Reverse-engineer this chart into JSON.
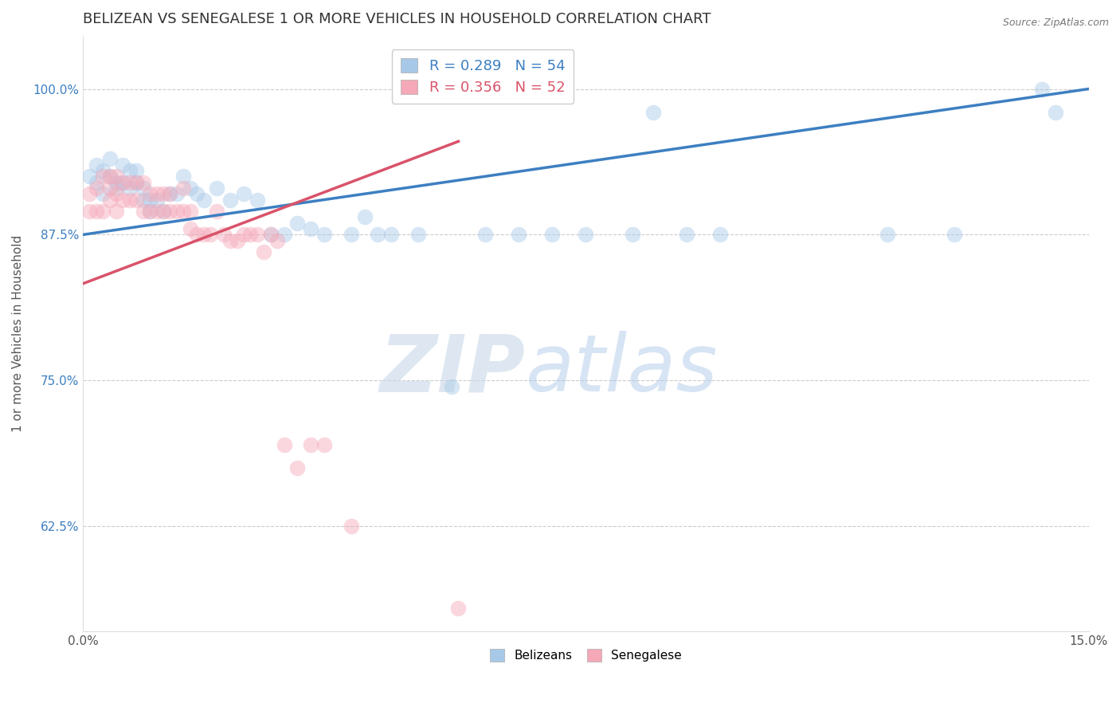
{
  "title": "BELIZEAN VS SENEGALESE 1 OR MORE VEHICLES IN HOUSEHOLD CORRELATION CHART",
  "source": "Source: ZipAtlas.com",
  "ylabel": "1 or more Vehicles in Household",
  "watermark_zip": "ZIP",
  "watermark_atlas": "atlas",
  "yticks": [
    0.625,
    0.75,
    0.875,
    1.0
  ],
  "ytick_labels": [
    "62.5%",
    "75.0%",
    "87.5%",
    "100.0%"
  ],
  "xlim": [
    0.0,
    0.15
  ],
  "ylim": [
    0.535,
    1.045
  ],
  "blue_scatter_x": [
    0.001,
    0.002,
    0.002,
    0.003,
    0.003,
    0.004,
    0.004,
    0.005,
    0.005,
    0.006,
    0.006,
    0.007,
    0.007,
    0.008,
    0.008,
    0.009,
    0.009,
    0.01,
    0.01,
    0.011,
    0.012,
    0.013,
    0.014,
    0.015,
    0.016,
    0.017,
    0.018,
    0.02,
    0.022,
    0.024,
    0.026,
    0.028,
    0.03,
    0.032,
    0.034,
    0.036,
    0.04,
    0.042,
    0.044,
    0.046,
    0.05,
    0.055,
    0.06,
    0.065,
    0.07,
    0.075,
    0.082,
    0.085,
    0.09,
    0.095,
    0.12,
    0.13,
    0.143,
    0.145
  ],
  "blue_scatter_y": [
    0.925,
    0.935,
    0.92,
    0.93,
    0.91,
    0.94,
    0.925,
    0.92,
    0.915,
    0.92,
    0.935,
    0.93,
    0.915,
    0.93,
    0.92,
    0.915,
    0.905,
    0.905,
    0.895,
    0.905,
    0.895,
    0.91,
    0.91,
    0.925,
    0.915,
    0.91,
    0.905,
    0.915,
    0.905,
    0.91,
    0.905,
    0.875,
    0.875,
    0.885,
    0.88,
    0.875,
    0.875,
    0.89,
    0.875,
    0.875,
    0.875,
    0.745,
    0.875,
    0.875,
    0.875,
    0.875,
    0.875,
    0.98,
    0.875,
    0.875,
    0.875,
    0.875,
    1.0,
    0.98
  ],
  "pink_scatter_x": [
    0.001,
    0.001,
    0.002,
    0.002,
    0.003,
    0.003,
    0.004,
    0.004,
    0.004,
    0.005,
    0.005,
    0.005,
    0.006,
    0.006,
    0.007,
    0.007,
    0.008,
    0.008,
    0.009,
    0.009,
    0.01,
    0.01,
    0.011,
    0.011,
    0.012,
    0.012,
    0.013,
    0.013,
    0.014,
    0.015,
    0.015,
    0.016,
    0.016,
    0.017,
    0.018,
    0.019,
    0.02,
    0.021,
    0.022,
    0.023,
    0.024,
    0.025,
    0.026,
    0.027,
    0.028,
    0.029,
    0.03,
    0.032,
    0.034,
    0.036,
    0.04,
    0.056
  ],
  "pink_scatter_y": [
    0.91,
    0.895,
    0.915,
    0.895,
    0.925,
    0.895,
    0.925,
    0.915,
    0.905,
    0.925,
    0.91,
    0.895,
    0.92,
    0.905,
    0.92,
    0.905,
    0.92,
    0.905,
    0.92,
    0.895,
    0.91,
    0.895,
    0.91,
    0.895,
    0.91,
    0.895,
    0.91,
    0.895,
    0.895,
    0.915,
    0.895,
    0.895,
    0.88,
    0.875,
    0.875,
    0.875,
    0.895,
    0.875,
    0.87,
    0.87,
    0.875,
    0.875,
    0.875,
    0.86,
    0.875,
    0.87,
    0.695,
    0.675,
    0.695,
    0.695,
    0.625,
    0.555
  ],
  "blue_line_x": [
    0.0,
    0.15
  ],
  "blue_line_y": [
    0.875,
    1.0
  ],
  "pink_line_x": [
    0.0,
    0.056
  ],
  "pink_line_y": [
    0.833,
    0.955
  ],
  "blue_dot_color": "#a8c8e8",
  "pink_dot_color": "#f5a8b8",
  "blue_line_color": "#3d7fc1",
  "pink_line_color": "#d9536a",
  "legend1_label": "R = 0.289   N = 54",
  "legend2_label": "R = 0.356   N = 52",
  "legend1_text_color": "#3d7fc1",
  "legend2_text_color": "#d9536a",
  "bottom_legend_labels": [
    "Belizeans",
    "Senegalese"
  ],
  "scatter_size": 200,
  "scatter_alpha": 0.45,
  "title_fontsize": 13,
  "axis_label_fontsize": 11,
  "tick_fontsize": 11,
  "legend_fontsize": 13,
  "source_fontsize": 9,
  "ytick_color": "#3d7fc1"
}
